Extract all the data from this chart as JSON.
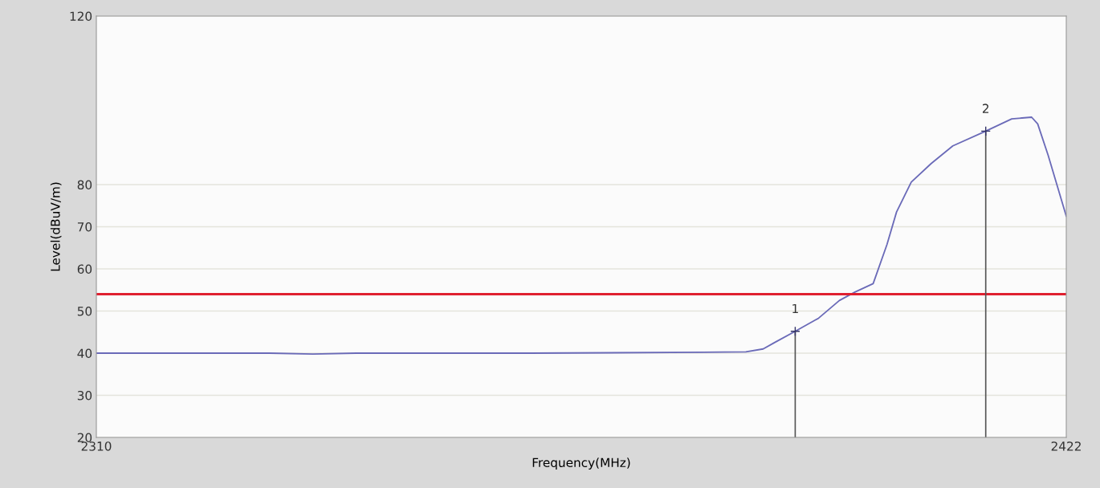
{
  "chart_data": {
    "type": "line",
    "xlabel": "Frequency(MHz)",
    "ylabel": "Level(dBuV/m)",
    "x": [
      2310,
      2330,
      2335,
      2340,
      2360,
      2380,
      2385,
      2387,
      2388.3,
      2390.7,
      2393.4,
      2395.8,
      2397.6,
      2399.7,
      2401.3,
      2402.4,
      2404.1,
      2406.4,
      2408.9,
      2412.7,
      2415.7,
      2418,
      2418.7,
      2419.9,
      2422
    ],
    "series": [
      {
        "color": "#6a6ab8",
        "values": [
          40,
          40,
          39.8,
          40,
          40,
          40.2,
          40.3,
          41,
          42.5,
          45.2,
          48.3,
          52.5,
          54.5,
          56.5,
          65.8,
          73.5,
          80.6,
          85,
          89.2,
          92.7,
          95.6,
          96,
          94.4,
          87,
          72.5
        ]
      }
    ],
    "xlim": [
      2310,
      2422
    ],
    "xticks": [
      2310,
      2422
    ],
    "ylim": [
      20,
      120
    ],
    "yticks": [
      20,
      30,
      40,
      50,
      60,
      70,
      80,
      120
    ],
    "grid": "y",
    "marker": "none",
    "line_style": "solid",
    "ref_lines": [
      {
        "axis": "y",
        "value": 54,
        "color": "#e02030",
        "line_style": "solid"
      },
      {
        "axis": "x",
        "value": 2390.7,
        "color": "#555555",
        "line_style": "solid"
      },
      {
        "axis": "x",
        "value": 2412.7,
        "color": "#555555",
        "line_style": "solid"
      }
    ],
    "annotations": [
      {
        "text": "1",
        "x": 2390.7,
        "y": 45.2
      },
      {
        "text": "2",
        "x": 2412.7,
        "y": 92.7
      }
    ]
  }
}
